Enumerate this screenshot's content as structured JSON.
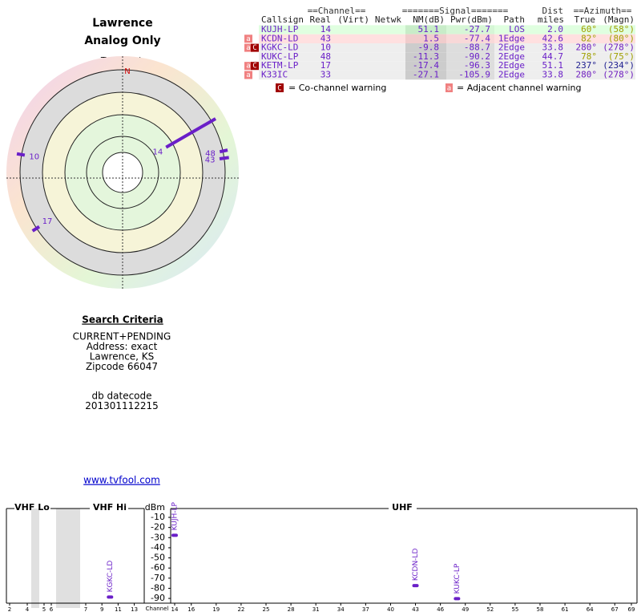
{
  "header": {
    "title": "Lawrence",
    "subtitle": "Analog Only"
  },
  "polar": {
    "north_caption": "TrueNorth",
    "north": "N",
    "labels": [
      "14",
      "43",
      "10",
      "48",
      "17"
    ]
  },
  "table": {
    "group_headers": [
      "==Channel==",
      "=======Signal=======",
      "Dist",
      "==Azimuth=="
    ],
    "columns": [
      "Callsign",
      "Real",
      "(Virt)",
      "Netwk",
      "NM(dB)",
      "Pwr(dBm)",
      "Path",
      "miles",
      "True",
      "(Magn)"
    ],
    "rows": [
      {
        "flags": [],
        "bg": "#e0ffe0",
        "az_color": "#a0a000",
        "cells": [
          "KUJH-LP",
          "14",
          "51.1",
          "-27.7",
          "LOS",
          "2.0",
          "60°",
          "(58°)"
        ]
      },
      {
        "flags": [
          "a"
        ],
        "bg": "#ffe0e0",
        "az_color": "#a0a000",
        "cells": [
          "KCDN-LD",
          "43",
          "1.5",
          "-77.4",
          "1Edge",
          "42.6",
          "82°",
          "(80°)"
        ]
      },
      {
        "flags": [
          "a",
          "C"
        ],
        "bg": "#eeeeee",
        "az_color": "#7020c0",
        "cells": [
          "KGKC-LD",
          "10",
          "-9.8",
          "-88.7",
          "2Edge",
          "33.8",
          "280°",
          "(278°)"
        ]
      },
      {
        "flags": [],
        "bg": "#eeeeee",
        "az_color": "#a0a000",
        "cells": [
          "KUKC-LP",
          "48",
          "-11.3",
          "-90.2",
          "2Edge",
          "44.7",
          "78°",
          "(75°)"
        ]
      },
      {
        "flags": [
          "a",
          "C"
        ],
        "bg": "#eeeeee",
        "az_color": "#202090",
        "cells": [
          "KETM-LP",
          "17",
          "-17.4",
          "-96.3",
          "2Edge",
          "51.1",
          "237°",
          "(234°)"
        ]
      },
      {
        "flags": [
          "a"
        ],
        "bg": "#eeeeee",
        "az_color": "#7020c0",
        "cells": [
          "K33IC",
          "33",
          "-27.1",
          "-105.9",
          "2Edge",
          "33.8",
          "280°",
          "(278°)"
        ]
      }
    ]
  },
  "legend": {
    "co_icon": "C",
    "co_text": "= Co-channel warning",
    "adj_icon": "a",
    "adj_text": "= Adjacent channel warning"
  },
  "search": {
    "title": "Search Criteria",
    "lines": [
      "CURRENT+PENDING",
      "Address: exact",
      "Lawrence, KS",
      "Zipcode 66047"
    ],
    "db_lines": [
      "db datecode",
      "201301112215"
    ]
  },
  "link": "www.tvfool.com",
  "spectrum": {
    "bands": [
      "VHF Lo",
      "VHF Hi",
      "UHF"
    ],
    "y_label": "dBm",
    "ylim": [
      -100,
      0
    ],
    "yticks": [
      -10,
      -20,
      -30,
      -40,
      -50,
      -60,
      -70,
      -80,
      -90
    ],
    "x_label": "Channel",
    "xticks": [
      2,
      4,
      5,
      6,
      7,
      9,
      11,
      13,
      14,
      16,
      19,
      22,
      25,
      28,
      31,
      34,
      37,
      40,
      43,
      46,
      49,
      52,
      55,
      58,
      61,
      64,
      67,
      69
    ],
    "stations": [
      {
        "name": "KUJH-LP",
        "channel": 14,
        "value": -27.7
      },
      {
        "name": "KGKC-LD",
        "channel": 10,
        "value": -88.7
      },
      {
        "name": "KCDN-LD",
        "channel": 43,
        "value": -77.4
      },
      {
        "name": "KUKC-LP",
        "channel": 48,
        "value": -90.2
      }
    ]
  }
}
